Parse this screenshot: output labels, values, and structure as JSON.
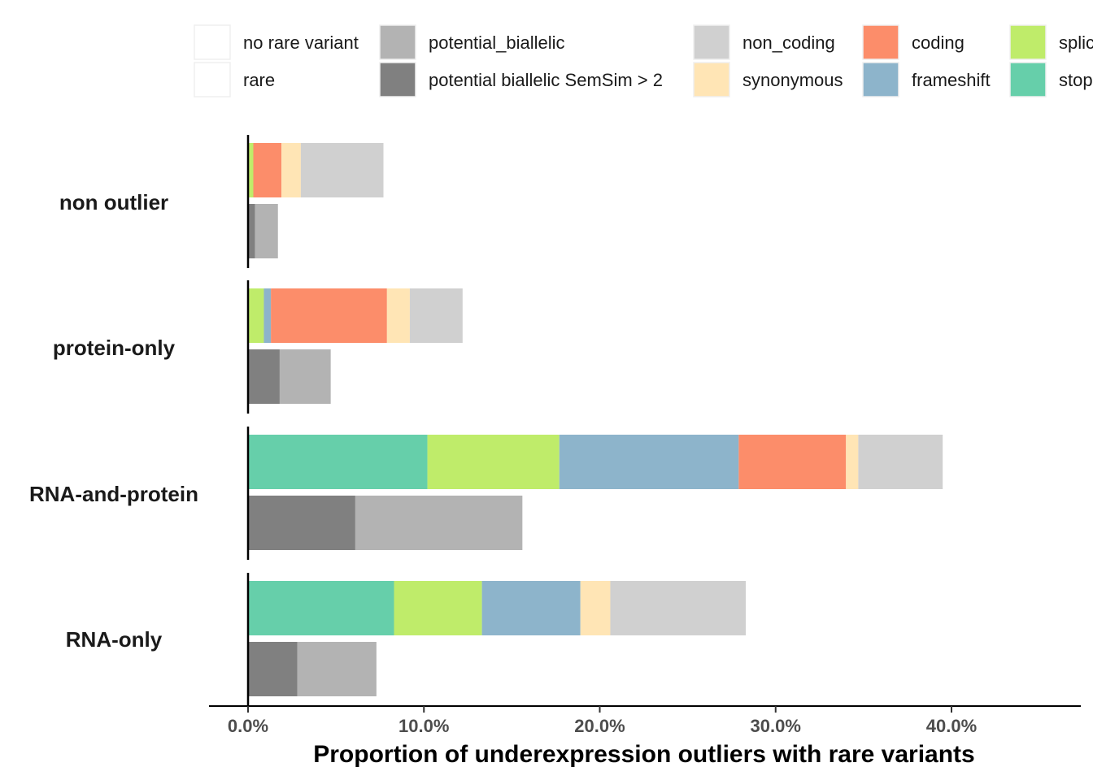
{
  "chart_data": {
    "type": "bar",
    "orientation": "horizontal",
    "stacked": true,
    "xlabel": "Proportion of underexpression outliers with rare variants",
    "xlim": [
      -0.022,
      0.472
    ],
    "xticks": [
      0.0,
      0.1,
      0.2,
      0.3,
      0.4
    ],
    "xtick_labels": [
      "0.0%",
      "10.0%",
      "20.0%",
      "30.0%",
      "40.0%"
    ],
    "grid": false,
    "legend_position": "top",
    "categories": [
      "non outlier",
      "protein-only",
      "RNA-and-protein",
      "RNA-only"
    ],
    "legend": [
      {
        "key": "no_rare_variant",
        "label": "no rare variant",
        "color": "#ffffff"
      },
      {
        "key": "rare",
        "label": "rare",
        "color": "#ffffff"
      },
      {
        "key": "potential_biallelic",
        "label": "potential_biallelic",
        "color": "#b3b3b3"
      },
      {
        "key": "potential_biallelic_semsim",
        "label": "potential biallelic SemSim > 2",
        "color": "#808080"
      },
      {
        "key": "non_coding",
        "label": "non_coding",
        "color": "#d0d0d0"
      },
      {
        "key": "synonymous",
        "label": "synonymous",
        "color": "#ffe5b5"
      },
      {
        "key": "coding",
        "label": "coding",
        "color": "#fc8d6a"
      },
      {
        "key": "frameshift",
        "label": "frameshift",
        "color": "#8db4cb"
      },
      {
        "key": "splice",
        "label": "splice",
        "color": "#bfec6a"
      },
      {
        "key": "stop",
        "label": "stop",
        "color": "#66cfaa"
      }
    ],
    "bars": {
      "rare": {
        "series_order": [
          "stop",
          "splice",
          "frameshift",
          "coding",
          "synonymous",
          "non_coding"
        ],
        "values": {
          "non outlier": [
            0.0,
            0.003,
            0.0,
            0.016,
            0.011,
            0.047
          ],
          "protein-only": [
            0.0,
            0.009,
            0.004,
            0.066,
            0.013,
            0.03
          ],
          "RNA-and-protein": [
            0.102,
            0.075,
            0.102,
            0.061,
            0.007,
            0.048
          ],
          "RNA-only": [
            0.083,
            0.05,
            0.056,
            0.0,
            0.017,
            0.077
          ]
        }
      },
      "biallelic": {
        "series_order": [
          "potential_biallelic_semsim",
          "potential_biallelic"
        ],
        "values": {
          "non outlier": [
            0.004,
            0.013
          ],
          "protein-only": [
            0.018,
            0.029
          ],
          "RNA-and-protein": [
            0.061,
            0.095
          ],
          "RNA-only": [
            0.028,
            0.045
          ]
        }
      }
    }
  }
}
